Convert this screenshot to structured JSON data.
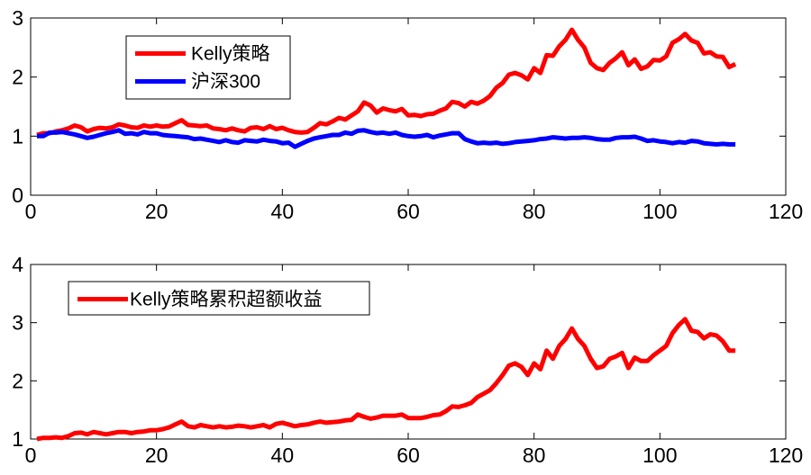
{
  "chart_data": [
    {
      "type": "line",
      "xlim": [
        0,
        120
      ],
      "ylim": [
        0,
        3
      ],
      "x_ticks": [
        0,
        20,
        40,
        60,
        80,
        100,
        120
      ],
      "y_ticks": [
        0,
        1,
        2,
        3
      ],
      "grid": false,
      "legend_position": "top-left",
      "series": [
        {
          "name": "Kelly策略",
          "color": "#ff0000",
          "x": [
            1,
            2,
            3,
            4,
            5,
            6,
            7,
            8,
            9,
            10,
            11,
            12,
            13,
            14,
            15,
            16,
            17,
            18,
            19,
            20,
            21,
            22,
            23,
            24,
            25,
            26,
            27,
            28,
            29,
            30,
            31,
            32,
            33,
            34,
            35,
            36,
            37,
            38,
            39,
            40,
            41,
            42,
            43,
            44,
            45,
            46,
            47,
            48,
            49,
            50,
            51,
            52,
            53,
            54,
            55,
            56,
            57,
            58,
            59,
            60,
            61,
            62,
            63,
            64,
            65,
            66,
            67,
            68,
            69,
            70,
            71,
            72,
            73,
            74,
            75,
            76,
            77,
            78,
            79,
            80,
            81,
            82,
            83,
            84,
            85,
            86,
            87,
            88,
            89,
            90,
            91,
            92,
            93,
            94,
            95,
            96,
            97,
            98,
            99,
            100,
            101,
            102,
            103,
            104,
            105,
            106,
            107,
            108,
            109,
            110,
            111,
            112
          ],
          "values": [
            1.02,
            1.05,
            1.05,
            1.08,
            1.1,
            1.13,
            1.18,
            1.15,
            1.08,
            1.12,
            1.14,
            1.13,
            1.15,
            1.2,
            1.18,
            1.15,
            1.14,
            1.18,
            1.16,
            1.18,
            1.16,
            1.17,
            1.22,
            1.27,
            1.19,
            1.18,
            1.17,
            1.18,
            1.13,
            1.12,
            1.1,
            1.13,
            1.1,
            1.08,
            1.14,
            1.15,
            1.12,
            1.17,
            1.12,
            1.14,
            1.1,
            1.07,
            1.06,
            1.07,
            1.14,
            1.22,
            1.2,
            1.25,
            1.31,
            1.28,
            1.35,
            1.42,
            1.57,
            1.52,
            1.4,
            1.47,
            1.44,
            1.42,
            1.46,
            1.35,
            1.36,
            1.34,
            1.37,
            1.38,
            1.43,
            1.47,
            1.58,
            1.56,
            1.5,
            1.58,
            1.55,
            1.6,
            1.68,
            1.82,
            1.9,
            2.04,
            2.07,
            2.03,
            1.96,
            2.15,
            2.07,
            2.37,
            2.36,
            2.52,
            2.63,
            2.8,
            2.63,
            2.5,
            2.24,
            2.15,
            2.12,
            2.24,
            2.32,
            2.42,
            2.2,
            2.3,
            2.14,
            2.18,
            2.29,
            2.28,
            2.35,
            2.58,
            2.64,
            2.73,
            2.62,
            2.58,
            2.4,
            2.42,
            2.35,
            2.34,
            2.17,
            2.22
          ]
        },
        {
          "name": "沪深300",
          "color": "#0000ff",
          "x": [
            1,
            2,
            3,
            4,
            5,
            6,
            7,
            8,
            9,
            10,
            11,
            12,
            13,
            14,
            15,
            16,
            17,
            18,
            19,
            20,
            21,
            22,
            23,
            24,
            25,
            26,
            27,
            28,
            29,
            30,
            31,
            32,
            33,
            34,
            35,
            36,
            37,
            38,
            39,
            40,
            41,
            42,
            43,
            44,
            45,
            46,
            47,
            48,
            49,
            50,
            51,
            52,
            53,
            54,
            55,
            56,
            57,
            58,
            59,
            60,
            61,
            62,
            63,
            64,
            65,
            66,
            67,
            68,
            69,
            70,
            71,
            72,
            73,
            74,
            75,
            76,
            77,
            78,
            79,
            80,
            81,
            82,
            83,
            84,
            85,
            86,
            87,
            88,
            89,
            90,
            91,
            92,
            93,
            94,
            95,
            96,
            97,
            98,
            99,
            100,
            101,
            102,
            103,
            104,
            105,
            106,
            107,
            108,
            109,
            110,
            111,
            112
          ],
          "values": [
            1.0,
            1.0,
            1.06,
            1.06,
            1.07,
            1.05,
            1.03,
            1.0,
            0.97,
            0.99,
            1.02,
            1.05,
            1.07,
            1.1,
            1.04,
            1.05,
            1.03,
            1.07,
            1.05,
            1.05,
            1.02,
            1.01,
            1.0,
            0.99,
            0.98,
            0.95,
            0.96,
            0.94,
            0.92,
            0.9,
            0.93,
            0.9,
            0.89,
            0.93,
            0.92,
            0.91,
            0.94,
            0.92,
            0.91,
            0.88,
            0.89,
            0.82,
            0.87,
            0.92,
            0.96,
            0.98,
            1.0,
            1.02,
            1.02,
            1.06,
            1.04,
            1.09,
            1.1,
            1.07,
            1.05,
            1.06,
            1.04,
            1.06,
            1.02,
            1.0,
            0.99,
            1.0,
            1.02,
            0.98,
            1.01,
            1.03,
            1.05,
            1.05,
            0.95,
            0.91,
            0.88,
            0.89,
            0.88,
            0.89,
            0.87,
            0.88,
            0.9,
            0.91,
            0.92,
            0.93,
            0.95,
            0.96,
            0.98,
            0.97,
            0.96,
            0.97,
            0.97,
            0.98,
            0.97,
            0.95,
            0.94,
            0.94,
            0.97,
            0.98,
            0.98,
            0.99,
            0.96,
            0.92,
            0.93,
            0.91,
            0.9,
            0.88,
            0.9,
            0.89,
            0.92,
            0.91,
            0.88,
            0.87,
            0.86,
            0.87,
            0.86,
            0.86
          ]
        }
      ]
    },
    {
      "type": "line",
      "xlim": [
        0,
        120
      ],
      "ylim": [
        1,
        4
      ],
      "x_ticks": [
        0,
        20,
        40,
        60,
        80,
        100,
        120
      ],
      "y_ticks": [
        1,
        2,
        3,
        4
      ],
      "grid": false,
      "legend_position": "top-left",
      "series": [
        {
          "name": "Kelly策略累积超额收益",
          "color": "#ff0000",
          "x": [
            1,
            2,
            3,
            4,
            5,
            6,
            7,
            8,
            9,
            10,
            11,
            12,
            13,
            14,
            15,
            16,
            17,
            18,
            19,
            20,
            21,
            22,
            23,
            24,
            25,
            26,
            27,
            28,
            29,
            30,
            31,
            32,
            33,
            34,
            35,
            36,
            37,
            38,
            39,
            40,
            41,
            42,
            43,
            44,
            45,
            46,
            47,
            48,
            49,
            50,
            51,
            52,
            53,
            54,
            55,
            56,
            57,
            58,
            59,
            60,
            61,
            62,
            63,
            64,
            65,
            66,
            67,
            68,
            69,
            70,
            71,
            72,
            73,
            74,
            75,
            76,
            77,
            78,
            79,
            80,
            81,
            82,
            83,
            84,
            85,
            86,
            87,
            88,
            89,
            90,
            91,
            92,
            93,
            94,
            95,
            96,
            97,
            98,
            99,
            100,
            101,
            102,
            103,
            104,
            105,
            106,
            107,
            108,
            109,
            110,
            111,
            112
          ],
          "values": [
            1.0,
            1.02,
            1.02,
            1.03,
            1.02,
            1.05,
            1.1,
            1.11,
            1.08,
            1.12,
            1.1,
            1.08,
            1.1,
            1.12,
            1.12,
            1.1,
            1.12,
            1.13,
            1.15,
            1.15,
            1.17,
            1.2,
            1.25,
            1.3,
            1.22,
            1.2,
            1.24,
            1.22,
            1.2,
            1.22,
            1.2,
            1.21,
            1.23,
            1.22,
            1.2,
            1.22,
            1.24,
            1.2,
            1.26,
            1.28,
            1.25,
            1.22,
            1.24,
            1.25,
            1.28,
            1.3,
            1.28,
            1.29,
            1.3,
            1.32,
            1.33,
            1.42,
            1.38,
            1.35,
            1.37,
            1.4,
            1.4,
            1.4,
            1.42,
            1.36,
            1.36,
            1.36,
            1.38,
            1.41,
            1.42,
            1.48,
            1.56,
            1.55,
            1.58,
            1.62,
            1.72,
            1.78,
            1.84,
            1.96,
            2.1,
            2.26,
            2.3,
            2.24,
            2.1,
            2.3,
            2.2,
            2.52,
            2.38,
            2.6,
            2.72,
            2.9,
            2.72,
            2.6,
            2.38,
            2.22,
            2.25,
            2.38,
            2.42,
            2.48,
            2.22,
            2.4,
            2.34,
            2.34,
            2.44,
            2.52,
            2.6,
            2.82,
            2.96,
            3.06,
            2.86,
            2.84,
            2.73,
            2.8,
            2.78,
            2.68,
            2.52,
            2.52
          ]
        }
      ]
    }
  ]
}
